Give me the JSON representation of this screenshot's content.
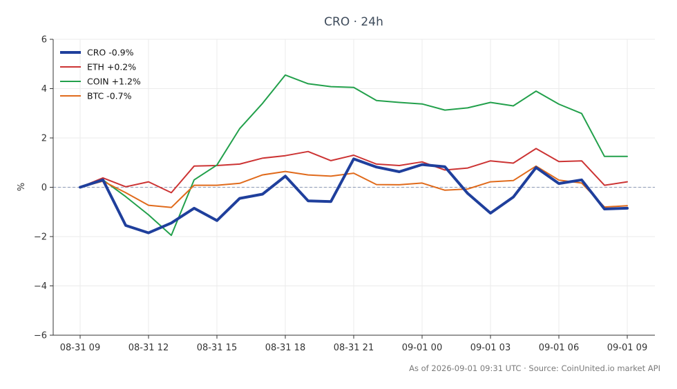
{
  "chart_data": {
    "type": "line",
    "title": "CRO · 24h",
    "xlabel": "",
    "ylabel": "%",
    "ylim": [
      -6,
      6
    ],
    "yticks": [
      6,
      4,
      2,
      0,
      -2,
      -4,
      -6
    ],
    "ytick_labels": [
      "6",
      "4",
      "2",
      "0",
      "−2",
      "−4",
      "−6"
    ],
    "x": [
      "08-31 09",
      "08-31 10",
      "08-31 11",
      "08-31 12",
      "08-31 13",
      "08-31 14",
      "08-31 15",
      "08-31 16",
      "08-31 17",
      "08-31 18",
      "08-31 19",
      "08-31 20",
      "08-31 21",
      "08-31 22",
      "08-31 23",
      "09-01 00",
      "09-01 01",
      "09-01 02",
      "09-01 03",
      "09-01 04",
      "09-01 05",
      "09-01 06",
      "09-01 07",
      "09-01 08",
      "09-01 09"
    ],
    "xtick_labels": [
      "08-31 09",
      "08-31 12",
      "08-31 15",
      "08-31 18",
      "08-31 21",
      "09-01 00",
      "09-01 03",
      "09-01 06",
      "09-01 09"
    ],
    "grid": true,
    "zero_line": true,
    "legend_position": "top-left",
    "series": [
      {
        "name": "CRO -0.9%",
        "color": "#1f3f9c",
        "width": "thick",
        "values": [
          0.0,
          0.3,
          -1.55,
          -1.85,
          -1.45,
          -0.85,
          -1.35,
          -0.45,
          -0.28,
          0.45,
          -0.55,
          -0.58,
          1.15,
          0.82,
          0.63,
          0.92,
          0.83,
          -0.25,
          -1.05,
          -0.4,
          0.8,
          0.15,
          0.3,
          -0.88,
          -0.85
        ]
      },
      {
        "name": "ETH +0.2%",
        "color": "#cc3333",
        "width": "normal",
        "values": [
          0.0,
          0.38,
          0.02,
          0.22,
          -0.22,
          0.86,
          0.88,
          0.94,
          1.18,
          1.28,
          1.45,
          1.08,
          1.3,
          0.94,
          0.88,
          1.03,
          0.7,
          0.78,
          1.07,
          0.98,
          1.57,
          1.04,
          1.07,
          0.08,
          0.22
        ]
      },
      {
        "name": "COIN +1.2%",
        "color": "#22a04b",
        "width": "normal",
        "values": [
          0.0,
          0.3,
          -0.38,
          -1.12,
          -1.95,
          0.3,
          0.9,
          2.38,
          3.4,
          4.55,
          4.2,
          4.08,
          4.05,
          3.52,
          3.44,
          3.38,
          3.13,
          3.22,
          3.44,
          3.3,
          3.9,
          3.37,
          2.99,
          1.25,
          1.25
        ]
      },
      {
        "name": "BTC -0.7%",
        "color": "#e06a1b",
        "width": "normal",
        "values": [
          0.0,
          0.25,
          -0.22,
          -0.73,
          -0.82,
          0.08,
          0.08,
          0.16,
          0.5,
          0.64,
          0.5,
          0.45,
          0.57,
          0.11,
          0.1,
          0.17,
          -0.12,
          -0.07,
          0.22,
          0.27,
          0.86,
          0.29,
          0.17,
          -0.8,
          -0.75
        ]
      }
    ]
  },
  "footer": {
    "text": "As of 2026-09-01 09:31 UTC · Source: CoinUnited.io market API"
  },
  "colors": {
    "grid": "#ebebeb",
    "axis": "#333333",
    "zero_line": "#8b98b4",
    "title": "#3d4a5a"
  }
}
